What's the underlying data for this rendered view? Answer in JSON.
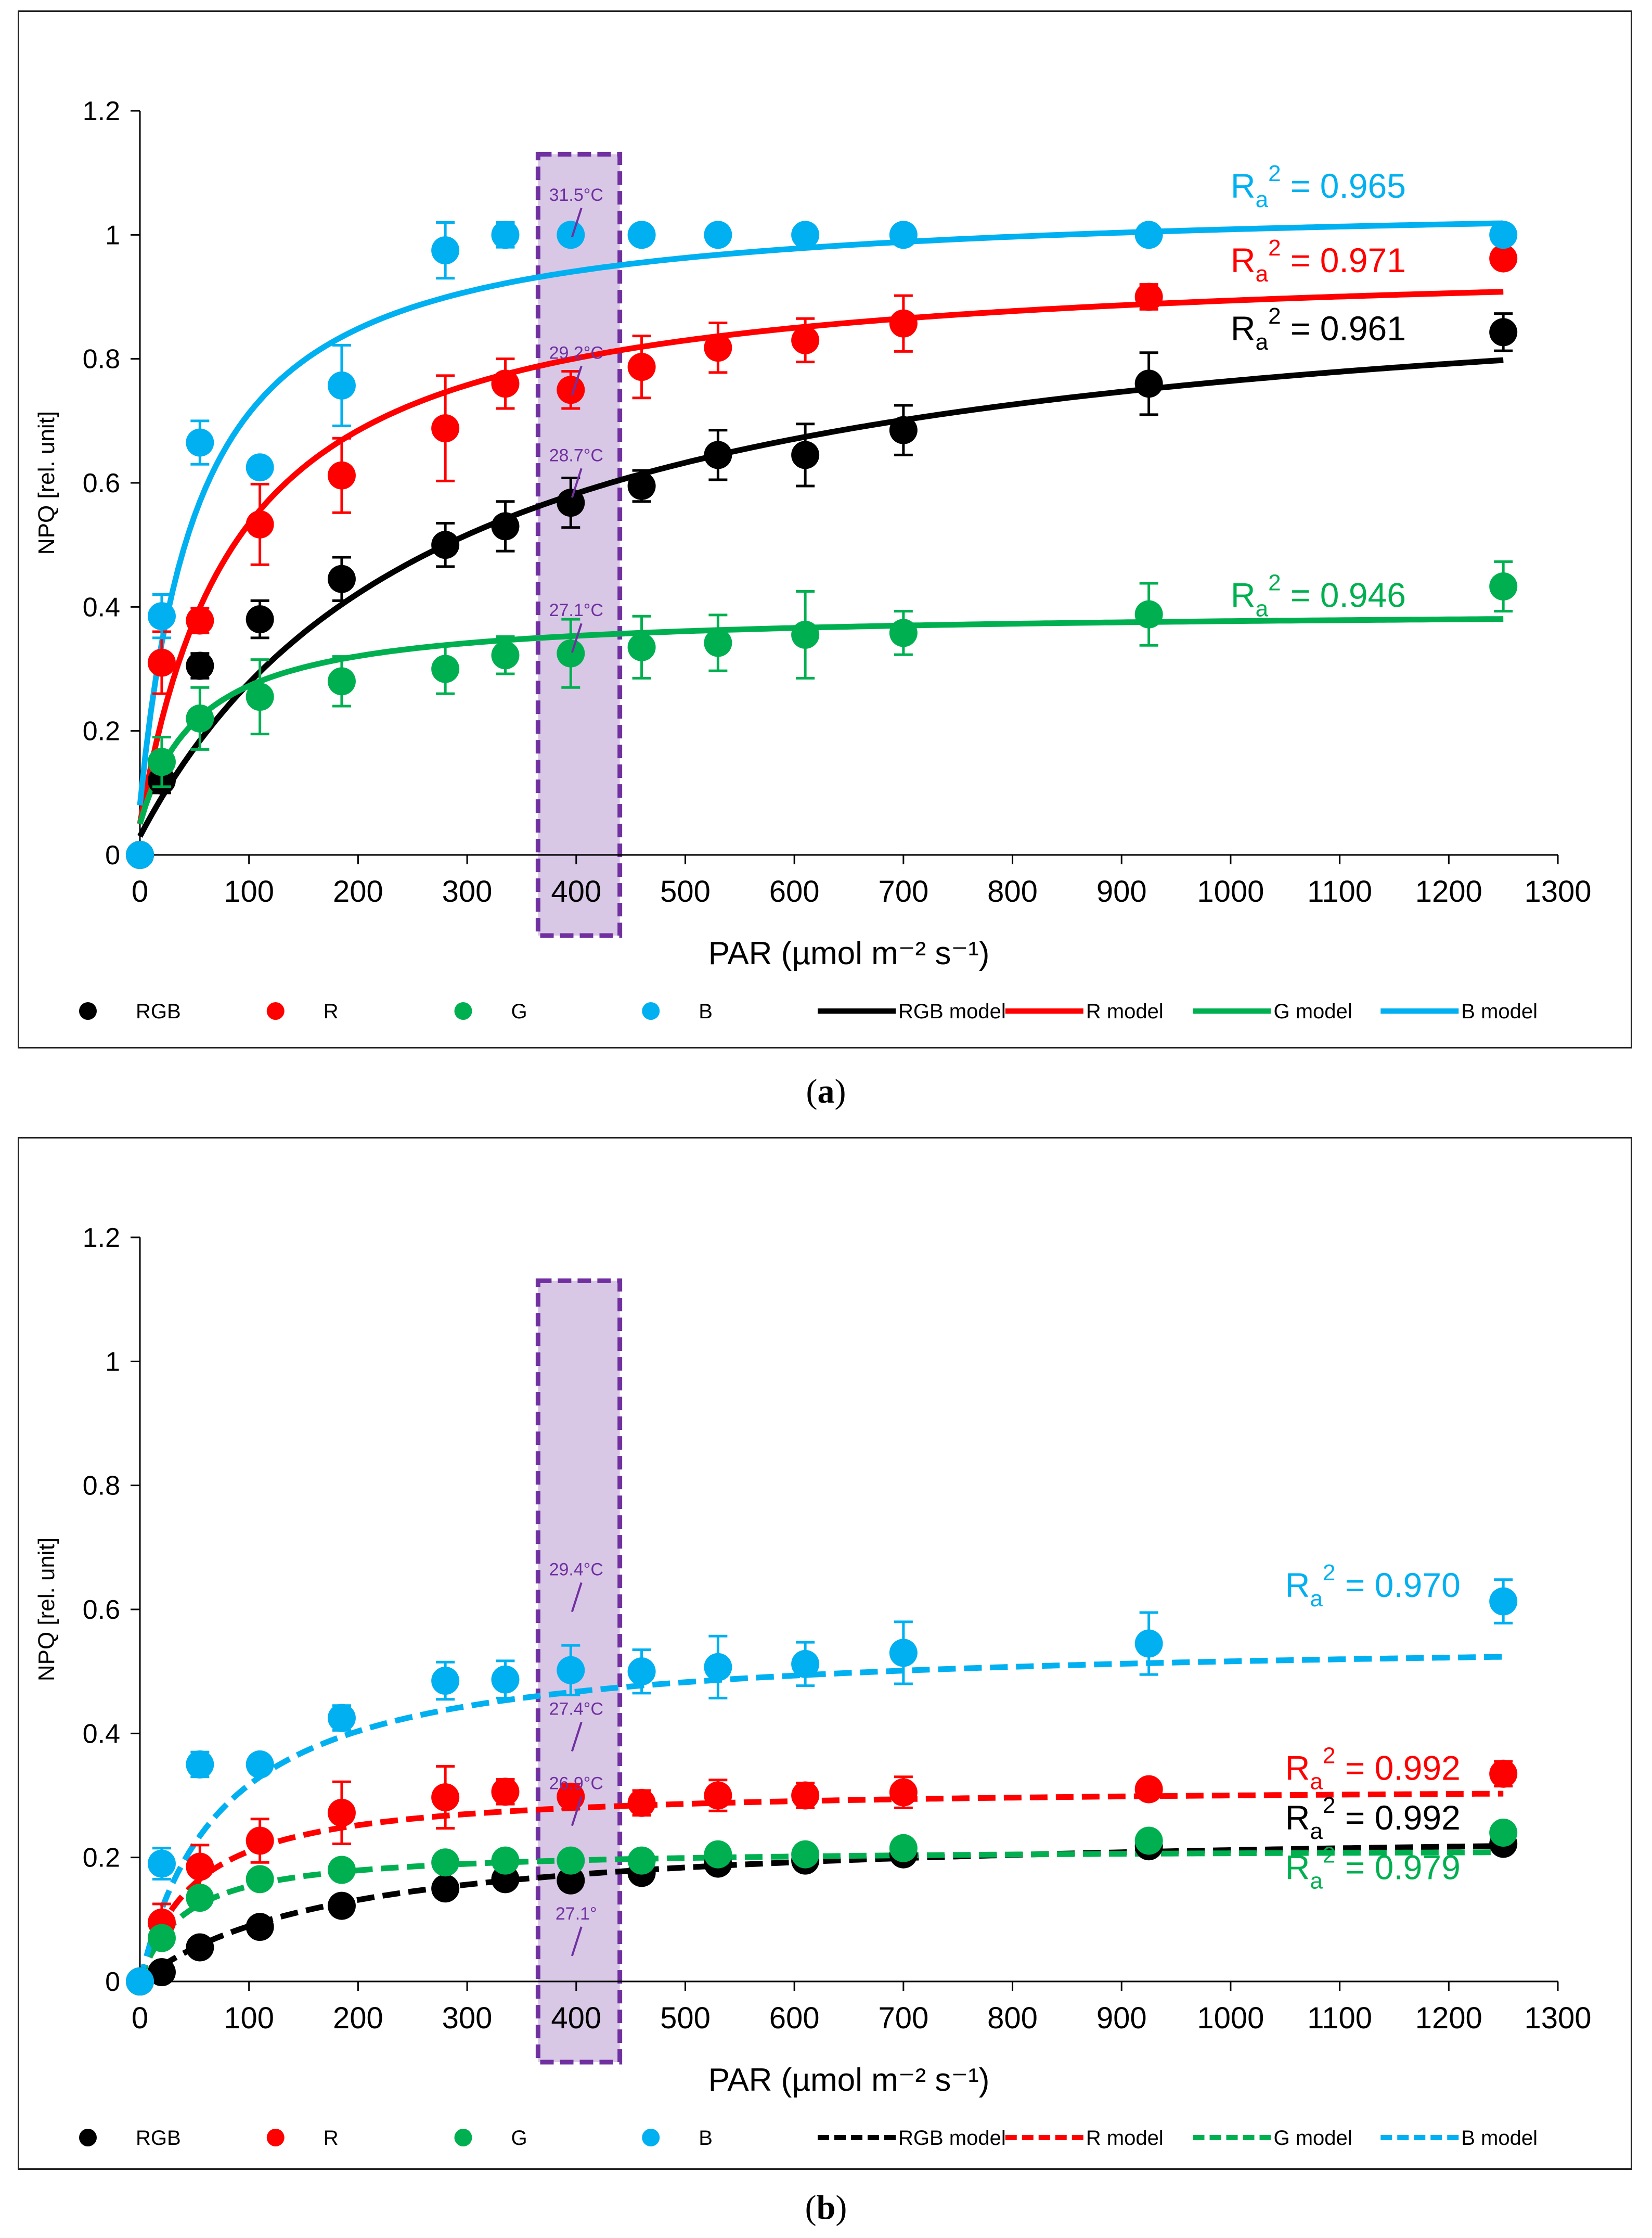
{
  "chart_data": [
    {
      "type": "scatter",
      "panel_label": "a",
      "xlabel": "PAR (µmol m⁻² s⁻¹)",
      "ylabel": "NPQ [rel. unit]",
      "xlim": [
        0,
        1300
      ],
      "ylim": [
        0,
        1.2
      ],
      "x_ticks": [
        0,
        100,
        200,
        300,
        400,
        500,
        600,
        700,
        800,
        900,
        1000,
        1100,
        1200,
        1300
      ],
      "y_ticks": [
        0,
        0.2,
        0.4,
        0.6,
        0.8,
        1,
        1.2
      ],
      "x": [
        0,
        20,
        55,
        110,
        185,
        280,
        335,
        395,
        460,
        530,
        610,
        700,
        925,
        1250
      ],
      "highlight_range": [
        365,
        440
      ],
      "line_style": "solid",
      "series": [
        {
          "name": "RGB",
          "model_name": "RGB model",
          "color": "#000000",
          "values": [
            0,
            0.12,
            0.305,
            0.38,
            0.445,
            0.5,
            0.53,
            0.568,
            0.595,
            0.645,
            0.645,
            0.685,
            0.76,
            0.843
          ],
          "errors": [
            0.01,
            0.02,
            0.02,
            0.03,
            0.035,
            0.035,
            0.04,
            0.04,
            0.025,
            0.04,
            0.05,
            0.04,
            0.05,
            0.03
          ],
          "model": {
            "a": 0.94,
            "k": 280,
            "b": 0.03
          },
          "r2_label": "Ra² = 0.961",
          "r2_value": "0.961",
          "r2_pos": [
            1000,
            0.83
          ]
        },
        {
          "name": "R",
          "model_name": "R model",
          "color": "#ff0000",
          "values": [
            0,
            0.31,
            0.378,
            0.533,
            0.612,
            0.688,
            0.76,
            0.75,
            0.787,
            0.818,
            0.83,
            0.857,
            0.9,
            0.962
          ],
          "errors": [
            0.01,
            0.05,
            0.02,
            0.065,
            0.06,
            0.085,
            0.04,
            0.03,
            0.05,
            0.04,
            0.035,
            0.045,
            0.02,
            0.015
          ],
          "model": {
            "a": 0.92,
            "k": 90,
            "b": 0.05
          },
          "r2_label": "Ra² = 0.971",
          "r2_value": "0.971",
          "r2_pos": [
            1000,
            0.94
          ]
        },
        {
          "name": "G",
          "model_name": "G model",
          "color": "#00b050",
          "values": [
            0,
            0.15,
            0.22,
            0.255,
            0.28,
            0.3,
            0.322,
            0.325,
            0.335,
            0.342,
            0.355,
            0.358,
            0.388,
            0.433
          ],
          "errors": [
            0.01,
            0.04,
            0.05,
            0.06,
            0.04,
            0.04,
            0.03,
            0.055,
            0.05,
            0.045,
            0.07,
            0.035,
            0.05,
            0.04
          ],
          "model": {
            "a": 0.345,
            "k": 55,
            "b": 0.05
          },
          "r2_label": "Ra² = 0.946",
          "r2_value": "0.946",
          "r2_pos": [
            1000,
            0.4
          ]
        },
        {
          "name": "B",
          "model_name": "B model",
          "color": "#00b0f0",
          "values": [
            0,
            0.385,
            0.665,
            0.625,
            0.757,
            0.975,
            1.0,
            1.0,
            1.0,
            1.0,
            1.0,
            1.0,
            1.0,
            1.0
          ],
          "errors": [
            0.01,
            0.035,
            0.035,
            0.015,
            0.065,
            0.045,
            0.02,
            0.01,
            0.01,
            0.01,
            0.01,
            0.01,
            0.01,
            0.01
          ],
          "model": {
            "a": 0.98,
            "k": 55,
            "b": 0.08
          },
          "r2_label": "Ra² = 0.965",
          "r2_value": "0.965",
          "r2_pos": [
            1000,
            1.06
          ]
        }
      ],
      "annotations": [
        {
          "text": "31.5°C",
          "x": 400,
          "y": 1.055
        },
        {
          "text": "29.2°C",
          "x": 400,
          "y": 0.8
        },
        {
          "text": "28.7°C",
          "x": 400,
          "y": 0.635
        },
        {
          "text": "27.1°C",
          "x": 400,
          "y": 0.385
        }
      ]
    },
    {
      "type": "scatter",
      "panel_label": "b",
      "xlabel": "PAR (µmol m⁻² s⁻¹)",
      "ylabel": "NPQ [rel. unit]",
      "xlim": [
        0,
        1300
      ],
      "ylim": [
        0,
        1.2
      ],
      "x_ticks": [
        0,
        100,
        200,
        300,
        400,
        500,
        600,
        700,
        800,
        900,
        1000,
        1100,
        1200,
        1300
      ],
      "y_ticks": [
        0,
        0.2,
        0.4,
        0.6,
        0.8,
        1,
        1.2
      ],
      "x": [
        0,
        20,
        55,
        110,
        185,
        280,
        335,
        395,
        460,
        530,
        610,
        700,
        925,
        1250
      ],
      "highlight_range": [
        365,
        440
      ],
      "line_style": "dashed",
      "series": [
        {
          "name": "RGB",
          "model_name": "RGB model",
          "color": "#000000",
          "values": [
            0,
            0.015,
            0.055,
            0.088,
            0.122,
            0.15,
            0.165,
            0.163,
            0.175,
            0.19,
            0.195,
            0.205,
            0.218,
            0.222
          ],
          "errors": [
            0.005,
            0.01,
            0.01,
            0.01,
            0.01,
            0.01,
            0.01,
            0.01,
            0.01,
            0.01,
            0.01,
            0.01,
            0.01,
            0.01
          ],
          "model": {
            "a": 0.25,
            "k": 180,
            "b": 0
          },
          "r2_label": "Ra² = 0.992",
          "r2_value": "0.992",
          "r2_pos": [
            1050,
            0.245
          ]
        },
        {
          "name": "R",
          "model_name": "R model",
          "color": "#ff0000",
          "values": [
            0,
            0.095,
            0.185,
            0.227,
            0.272,
            0.297,
            0.306,
            0.298,
            0.288,
            0.3,
            0.3,
            0.305,
            0.31,
            0.335
          ],
          "errors": [
            0.01,
            0.03,
            0.035,
            0.035,
            0.05,
            0.05,
            0.02,
            0.02,
            0.02,
            0.025,
            0.02,
            0.025,
            0.01,
            0.02
          ],
          "model": {
            "a": 0.315,
            "k": 50,
            "b": 0
          },
          "r2_label": "Ra² = 0.992",
          "r2_value": "0.992",
          "r2_pos": [
            1050,
            0.325
          ]
        },
        {
          "name": "G",
          "model_name": "G model",
          "color": "#00b050",
          "values": [
            0,
            0.07,
            0.135,
            0.165,
            0.18,
            0.192,
            0.195,
            0.195,
            0.195,
            0.205,
            0.205,
            0.215,
            0.227,
            0.24
          ],
          "errors": [
            0.005,
            0.01,
            0.01,
            0.01,
            0.01,
            0.01,
            0.01,
            0.01,
            0.01,
            0.01,
            0.01,
            0.01,
            0.01,
            0.01
          ],
          "model": {
            "a": 0.215,
            "k": 40,
            "b": 0
          },
          "r2_label": "Ra² = 0.979",
          "r2_value": "0.979",
          "r2_pos": [
            1050,
            0.165
          ]
        },
        {
          "name": "B",
          "model_name": "B model",
          "color": "#00b0f0",
          "values": [
            0,
            0.19,
            0.35,
            0.35,
            0.425,
            0.485,
            0.487,
            0.502,
            0.5,
            0.507,
            0.512,
            0.53,
            0.545,
            0.613
          ],
          "errors": [
            0.01,
            0.025,
            0.02,
            0.01,
            0.02,
            0.03,
            0.03,
            0.04,
            0.035,
            0.05,
            0.035,
            0.05,
            0.05,
            0.035
          ],
          "model": {
            "a": 0.555,
            "k": 75,
            "b": 0
          },
          "r2_label": "Ra² = 0.970",
          "r2_value": "0.970",
          "r2_pos": [
            1050,
            0.62
          ]
        }
      ],
      "annotations": [
        {
          "text": "29.4°C",
          "x": 400,
          "y": 0.655
        },
        {
          "text": "27.4°C",
          "x": 400,
          "y": 0.43
        },
        {
          "text": "26.9°C",
          "x": 400,
          "y": 0.31
        },
        {
          "text": "27.1°",
          "x": 400,
          "y": 0.1
        }
      ]
    }
  ]
}
